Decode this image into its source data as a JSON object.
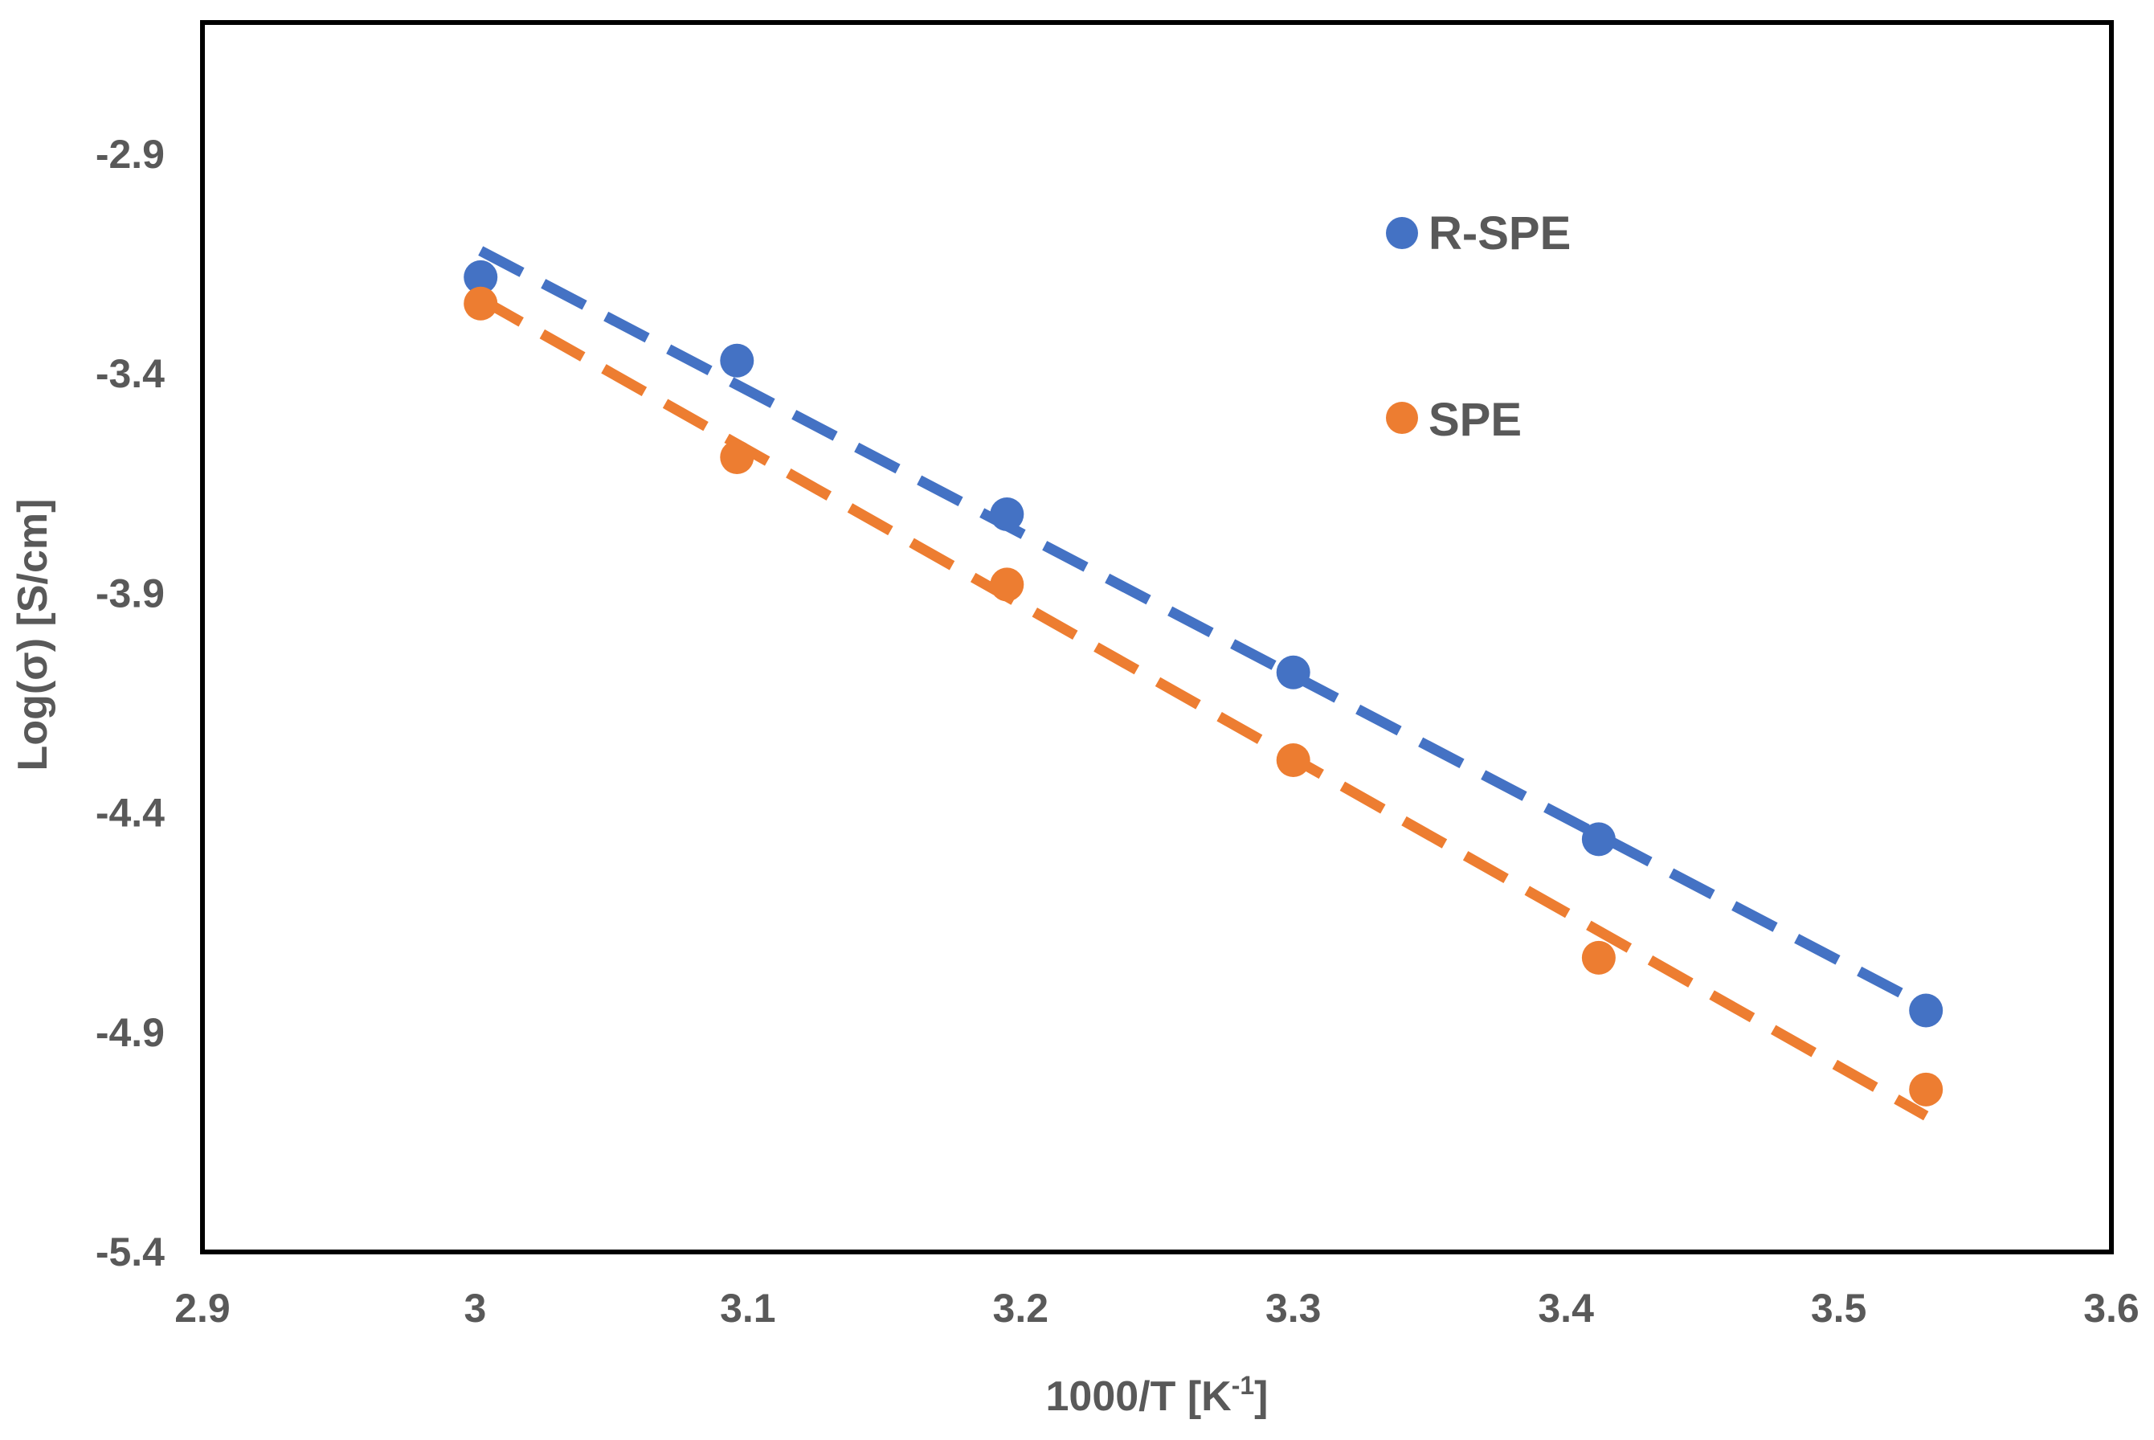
{
  "chart_data": {
    "type": "scatter",
    "title": "",
    "xlabel": "1000/T [K",
    "xlabel_sup": "-1",
    "xlabel_close": "]",
    "ylabel": "Log(σ) [S/cm]",
    "xlim": [
      2.9,
      3.6
    ],
    "ylim": [
      -5.4,
      -2.6
    ],
    "x_ticks": [
      2.9,
      3.0,
      3.1,
      3.2,
      3.3,
      3.4,
      3.5,
      3.6
    ],
    "x_tick_labels": [
      "2.9",
      "3",
      "3.1",
      "3.2",
      "3.3",
      "3.4",
      "3.5",
      "3.6"
    ],
    "y_ticks": [
      -2.9,
      -3.4,
      -3.9,
      -4.4,
      -4.9,
      -5.4
    ],
    "y_tick_labels": [
      "-2.9",
      "-3.4",
      "-3.9",
      "-4.4",
      "-4.9",
      "-5.4"
    ],
    "grid": false,
    "legend_position": "top-right",
    "series": [
      {
        "name": "R-SPE",
        "color": "#4472C4",
        "x": [
          3.002,
          3.096,
          3.195,
          3.3,
          3.412,
          3.532
        ],
        "y": [
          -3.18,
          -3.37,
          -3.72,
          -4.08,
          -4.46,
          -4.85
        ],
        "trendline": {
          "style": "dashed",
          "x": [
            3.002,
            3.532
          ],
          "y": [
            -3.12,
            -4.84
          ]
        }
      },
      {
        "name": "SPE",
        "color": "#ED7D31",
        "x": [
          3.002,
          3.096,
          3.195,
          3.3,
          3.412,
          3.532
        ],
        "y": [
          -3.24,
          -3.59,
          -3.88,
          -4.28,
          -4.73,
          -5.03
        ],
        "trendline": {
          "style": "dashed",
          "x": [
            3.002,
            3.532
          ],
          "y": [
            -3.23,
            -5.09
          ]
        }
      }
    ]
  }
}
